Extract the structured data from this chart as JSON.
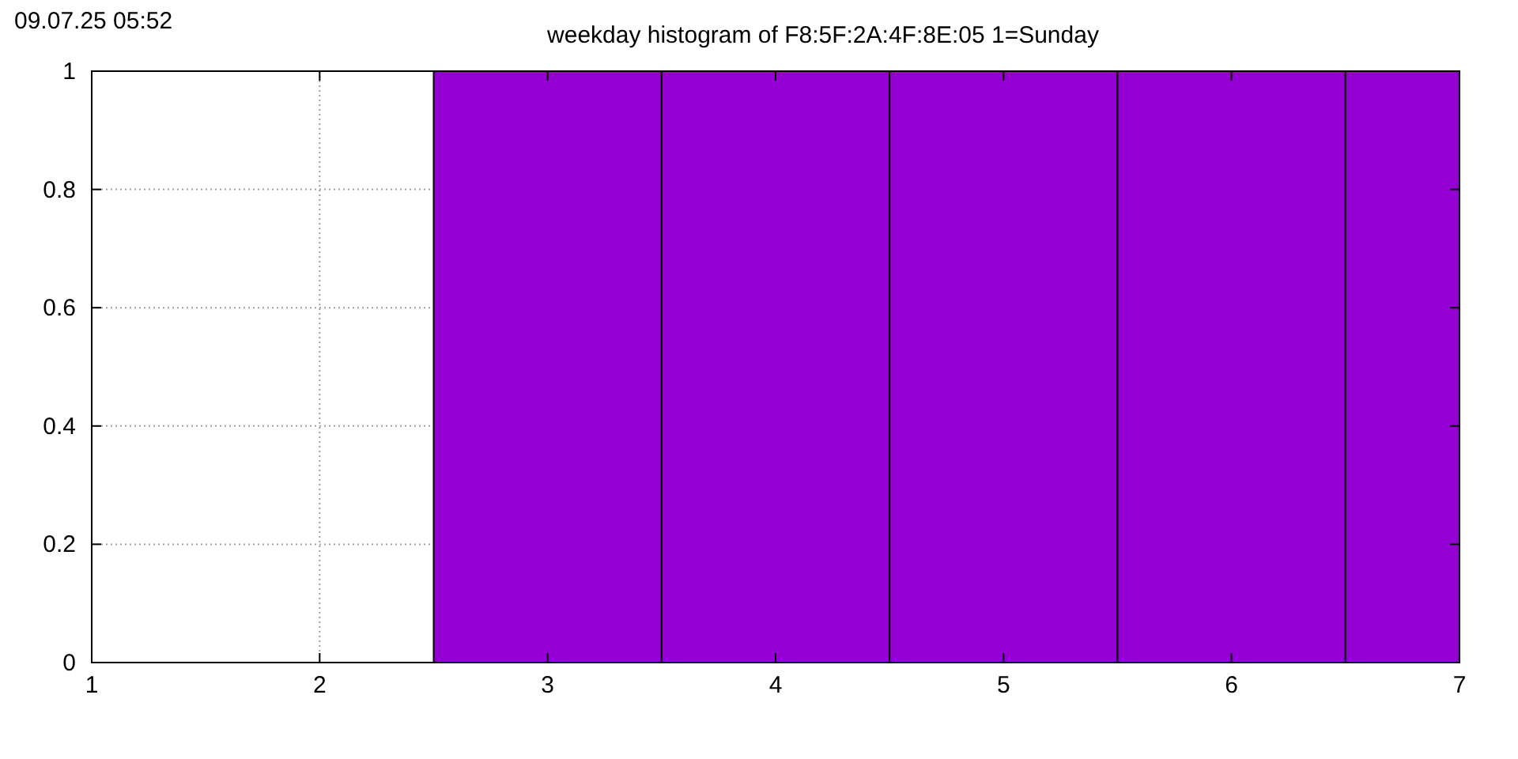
{
  "chart_data": {
    "type": "bar",
    "title": "weekday histogram of F8:5F:2A:4F:8E:05 1=Sunday",
    "annotations": [
      "09.07.25 05:52"
    ],
    "x": [
      3,
      4,
      5,
      6,
      7
    ],
    "values": [
      1,
      1,
      1,
      1,
      1
    ],
    "color": "#9400d3",
    "xlim": [
      1,
      7
    ],
    "xticks": [
      1,
      2,
      3,
      4,
      5,
      6,
      7
    ],
    "ylim": [
      0,
      1
    ],
    "yticks": [
      0,
      0.2,
      0.4,
      0.6,
      0.8,
      1
    ],
    "grid": true
  }
}
